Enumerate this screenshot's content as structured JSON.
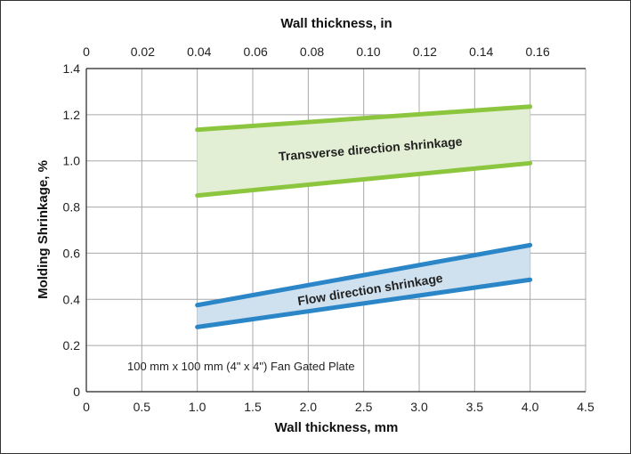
{
  "chart_data": {
    "type": "line",
    "title": "",
    "x_top": {
      "label": "Wall thickness, in",
      "range": [
        0,
        0.177
      ],
      "ticks": [
        "0",
        "0.02",
        "0.04",
        "0.06",
        "0.08",
        "0.10",
        "0.12",
        "0.14",
        "0.16"
      ],
      "tick_values": [
        0,
        0.02,
        0.04,
        0.06,
        0.08,
        0.1,
        0.12,
        0.14,
        0.16
      ]
    },
    "x": {
      "label": "Wall thickness, mm",
      "range": [
        0,
        4.5
      ],
      "ticks": [
        "0",
        "0.5",
        "1.0",
        "1.5",
        "2.0",
        "2.5",
        "3.0",
        "3.5",
        "4.0",
        "4.5"
      ],
      "tick_values": [
        0,
        0.5,
        1.0,
        1.5,
        2.0,
        2.5,
        3.0,
        3.5,
        4.0,
        4.5
      ]
    },
    "y": {
      "label": "Molding Shrinkage, %",
      "range": [
        0,
        1.4
      ],
      "ticks": [
        "0",
        "0.2",
        "0.4",
        "0.6",
        "0.8",
        "1.0",
        "1.2",
        "1.4"
      ],
      "tick_values": [
        0,
        0.2,
        0.4,
        0.6,
        0.8,
        1.0,
        1.2,
        1.4
      ]
    },
    "grid": true,
    "bands": [
      {
        "label": "Transverse direction shrinkage",
        "line_color": "#8cc63f",
        "fill_color": "#e3efd4",
        "upper": {
          "x": [
            1.0,
            4.0
          ],
          "y": [
            1.135,
            1.235
          ]
        },
        "lower": {
          "x": [
            1.0,
            4.0
          ],
          "y": [
            0.85,
            0.99
          ]
        }
      },
      {
        "label": "Flow  direction shrinkage",
        "line_color": "#2b86c8",
        "fill_color": "#cfe0ef",
        "upper": {
          "x": [
            1.0,
            4.0
          ],
          "y": [
            0.375,
            0.635
          ]
        },
        "lower": {
          "x": [
            1.0,
            4.0
          ],
          "y": [
            0.28,
            0.485
          ]
        }
      }
    ],
    "annotation": "100 mm x 100 mm (4\" x 4\") Fan Gated Plate"
  }
}
